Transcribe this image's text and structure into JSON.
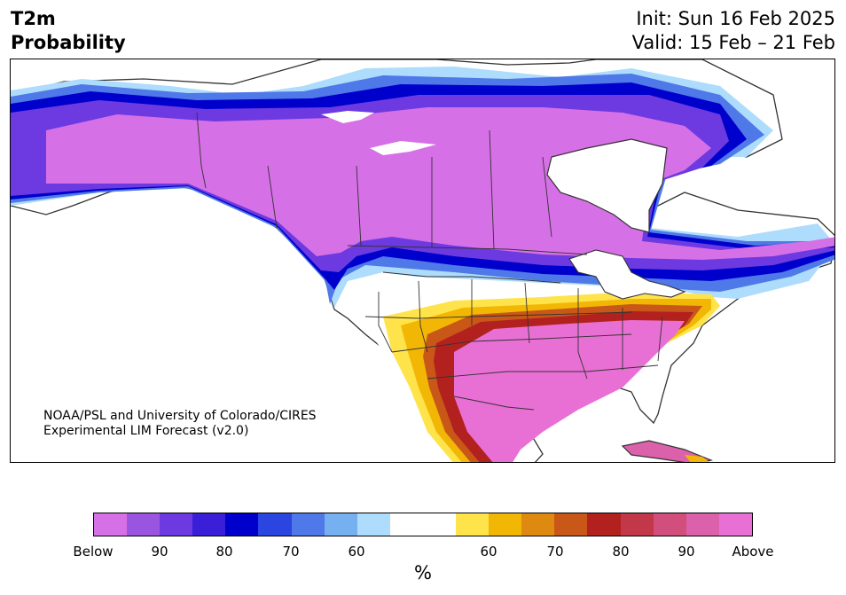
{
  "header": {
    "title_line1": "T2m",
    "title_line2": "Probability",
    "init_line": "Init: Sun 16 Feb 2025",
    "valid_line": "Valid: 15 Feb – 21 Feb"
  },
  "credit": {
    "line1": "NOAA/PSL and University of Colorado/CIRES",
    "line2": "Experimental LIM Forecast (v2.0)"
  },
  "colorbar": {
    "unit": "%",
    "colors": [
      "#d670e6",
      "#9a55e0",
      "#6c3ae0",
      "#3a1fd8",
      "#0000cc",
      "#2a45e0",
      "#4f78e8",
      "#76b0f0",
      "#addcfc",
      "#ffffff",
      "#ffffff",
      "#ffe34a",
      "#f2b705",
      "#de8a10",
      "#c85718",
      "#b3211f",
      "#c23848",
      "#d24e7c",
      "#db62aa",
      "#e870d4"
    ],
    "tick_labels": [
      "Below",
      "90",
      "80",
      "70",
      "60",
      "60",
      "70",
      "80",
      "90",
      "Above"
    ]
  },
  "map": {
    "background": "#ffffff",
    "land_base": "#ffffff",
    "below_colors": [
      "#d670e6",
      "#9a55e0",
      "#6c3ae0",
      "#3a1fd8",
      "#0000cc",
      "#2a45e0",
      "#4f78e8",
      "#76b0f0",
      "#addcfc"
    ],
    "above_colors": [
      "#ffe34a",
      "#f2b705",
      "#de8a10",
      "#c85718",
      "#b3211f",
      "#c23848",
      "#d24e7c",
      "#db62aa",
      "#e870d4"
    ],
    "border_color": "#333333"
  }
}
